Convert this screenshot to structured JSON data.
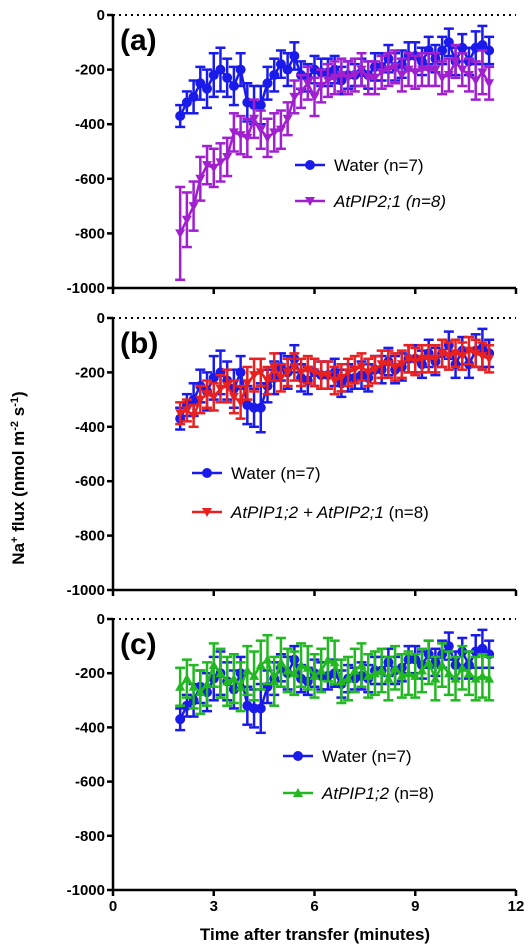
{
  "chart_data": {
    "type": "scatter",
    "xlabel": "Time after transfer (minutes)",
    "ylabel": {
      "base": "Na",
      "sup1": "+",
      "mid": " flux (nmol m",
      "sup2": "-2",
      "mid2": " s",
      "sup3": "-1",
      "end": ")"
    },
    "xlim": [
      0,
      12
    ],
    "xticks": [
      "0",
      "3",
      "6",
      "9",
      "12"
    ],
    "ylim": [
      -1000,
      0
    ],
    "yticks": [
      "0",
      "-200",
      "-400",
      "-600",
      "-800",
      "-1000"
    ],
    "panels": [
      {
        "label": "(a)",
        "legend": [
          {
            "text": "Water (n=7)",
            "italic": "",
            "suffix": "",
            "color": "#1a1aeb",
            "marker": "circle"
          },
          {
            "text": "",
            "italic": "AtPIP2;1 (n=8)",
            "suffix": "",
            "color": "#a020d0",
            "marker": "triangle-down"
          }
        ],
        "series": [
          {
            "color": "#1a1aeb",
            "marker": "circle",
            "x": [
              2.0,
              2.2,
              2.4,
              2.6,
              2.8,
              3.0,
              3.2,
              3.4,
              3.6,
              3.8,
              4.0,
              4.2,
              4.4,
              4.6,
              4.8,
              5.0,
              5.2,
              5.4,
              5.6,
              5.8,
              6.0,
              6.2,
              6.4,
              6.6,
              6.8,
              7.0,
              7.2,
              7.4,
              7.6,
              7.8,
              8.0,
              8.2,
              8.4,
              8.6,
              8.8,
              9.0,
              9.2,
              9.4,
              9.6,
              9.8,
              10.0,
              10.2,
              10.4,
              10.6,
              10.8,
              11.0,
              11.2
            ],
            "y": [
              -370,
              -320,
              -300,
              -250,
              -270,
              -220,
              -200,
              -230,
              -260,
              -200,
              -320,
              -330,
              -330,
              -250,
              -220,
              -180,
              -200,
              -150,
              -220,
              -230,
              -200,
              -210,
              -210,
              -200,
              -240,
              -220,
              -220,
              -210,
              -220,
              -190,
              -190,
              -160,
              -190,
              -180,
              -150,
              -150,
              -170,
              -130,
              -160,
              -130,
              -100,
              -170,
              -120,
              -170,
              -120,
              -110,
              -130
            ],
            "err": [
              40,
              40,
              60,
              60,
              70,
              80,
              80,
              70,
              70,
              60,
              70,
              70,
              70,
              60,
              60,
              50,
              60,
              50,
              50,
              50,
              50,
              50,
              50,
              50,
              50,
              50,
              40,
              50,
              50,
              50,
              50,
              50,
              50,
              50,
              50,
              50,
              50,
              50,
              50,
              50,
              50,
              50,
              50,
              50,
              60,
              70,
              50
            ]
          },
          {
            "color": "#a020d0",
            "marker": "triangle-down",
            "x": [
              2.0,
              2.2,
              2.4,
              2.6,
              2.8,
              3.0,
              3.2,
              3.4,
              3.6,
              3.8,
              4.0,
              4.2,
              4.4,
              4.6,
              4.8,
              5.0,
              5.2,
              5.4,
              5.6,
              5.8,
              6.0,
              6.2,
              6.4,
              6.6,
              6.8,
              7.0,
              7.2,
              7.4,
              7.6,
              7.8,
              8.0,
              8.2,
              8.4,
              8.6,
              8.8,
              9.0,
              9.2,
              9.4,
              9.6,
              9.8,
              10.0,
              10.2,
              10.4,
              10.6,
              10.8,
              11.0,
              11.2
            ],
            "y": [
              -800,
              -750,
              -700,
              -600,
              -550,
              -560,
              -540,
              -520,
              -430,
              -440,
              -450,
              -380,
              -420,
              -450,
              -430,
              -420,
              -380,
              -300,
              -280,
              -250,
              -300,
              -260,
              -240,
              -230,
              -220,
              -230,
              -220,
              -200,
              -230,
              -230,
              -210,
              -200,
              -190,
              -220,
              -200,
              -210,
              -200,
              -200,
              -200,
              -230,
              -220,
              -170,
              -200,
              -220,
              -240,
              -210,
              -250
            ],
            "err": [
              170,
              100,
              90,
              80,
              70,
              70,
              70,
              70,
              70,
              70,
              70,
              70,
              70,
              70,
              70,
              70,
              60,
              60,
              60,
              60,
              70,
              60,
              60,
              60,
              60,
              60,
              60,
              60,
              60,
              60,
              60,
              60,
              60,
              60,
              60,
              60,
              60,
              60,
              60,
              60,
              60,
              60,
              60,
              60,
              70,
              80,
              60
            ]
          }
        ]
      },
      {
        "label": "(b)",
        "legend": [
          {
            "text": "Water (n=7)",
            "italic": "",
            "suffix": "",
            "color": "#1a1aeb",
            "marker": "circle"
          },
          {
            "text": "",
            "italic": "AtPIP1;2 + AtPIP2;1",
            "suffix": " (n=8)",
            "color": "#e82020",
            "marker": "triangle-down"
          }
        ],
        "series": [
          {
            "color": "#1a1aeb",
            "marker": "circle",
            "x": [
              2.0,
              2.2,
              2.4,
              2.6,
              2.8,
              3.0,
              3.2,
              3.4,
              3.6,
              3.8,
              4.0,
              4.2,
              4.4,
              4.6,
              4.8,
              5.0,
              5.2,
              5.4,
              5.6,
              5.8,
              6.0,
              6.2,
              6.4,
              6.6,
              6.8,
              7.0,
              7.2,
              7.4,
              7.6,
              7.8,
              8.0,
              8.2,
              8.4,
              8.6,
              8.8,
              9.0,
              9.2,
              9.4,
              9.6,
              9.8,
              10.0,
              10.2,
              10.4,
              10.6,
              10.8,
              11.0,
              11.2
            ],
            "y": [
              -370,
              -320,
              -300,
              -250,
              -270,
              -220,
              -200,
              -230,
              -260,
              -200,
              -320,
              -330,
              -330,
              -250,
              -220,
              -180,
              -200,
              -150,
              -220,
              -230,
              -200,
              -210,
              -210,
              -200,
              -240,
              -220,
              -220,
              -210,
              -220,
              -190,
              -190,
              -160,
              -190,
              -180,
              -150,
              -150,
              -170,
              -130,
              -160,
              -130,
              -100,
              -170,
              -120,
              -170,
              -120,
              -110,
              -130
            ],
            "err": [
              40,
              40,
              60,
              60,
              70,
              80,
              80,
              70,
              70,
              60,
              70,
              70,
              90,
              60,
              60,
              50,
              60,
              50,
              50,
              50,
              50,
              50,
              50,
              50,
              50,
              50,
              40,
              50,
              50,
              50,
              50,
              50,
              50,
              50,
              50,
              50,
              50,
              50,
              50,
              50,
              50,
              50,
              50,
              50,
              60,
              70,
              50
            ]
          },
          {
            "color": "#e82020",
            "marker": "triangle-down",
            "x": [
              2.0,
              2.2,
              2.4,
              2.6,
              2.8,
              3.0,
              3.2,
              3.4,
              3.6,
              3.8,
              4.0,
              4.2,
              4.4,
              4.6,
              4.8,
              5.0,
              5.2,
              5.4,
              5.6,
              5.8,
              6.0,
              6.2,
              6.4,
              6.6,
              6.8,
              7.0,
              7.2,
              7.4,
              7.6,
              7.8,
              8.0,
              8.2,
              8.4,
              8.6,
              8.8,
              9.0,
              9.2,
              9.4,
              9.6,
              9.8,
              10.0,
              10.2,
              10.4,
              10.6,
              10.8,
              11.0,
              11.2
            ],
            "y": [
              -350,
              -340,
              -360,
              -300,
              -280,
              -290,
              -260,
              -250,
              -290,
              -310,
              -240,
              -210,
              -200,
              -230,
              -180,
              -220,
              -200,
              -180,
              -200,
              -190,
              -200,
              -210,
              -210,
              -230,
              -220,
              -200,
              -190,
              -180,
              -200,
              -190,
              -170,
              -170,
              -180,
              -170,
              -150,
              -160,
              -150,
              -150,
              -150,
              -130,
              -140,
              -130,
              -140,
              -120,
              -130,
              -140,
              -150
            ],
            "err": [
              40,
              40,
              40,
              50,
              50,
              50,
              50,
              60,
              60,
              60,
              60,
              60,
              50,
              50,
              50,
              50,
              50,
              50,
              50,
              50,
              50,
              50,
              50,
              50,
              50,
              50,
              50,
              50,
              50,
              50,
              50,
              50,
              50,
              50,
              50,
              50,
              50,
              50,
              50,
              50,
              50,
              50,
              50,
              50,
              50,
              50,
              50
            ]
          }
        ]
      },
      {
        "label": "(c)",
        "legend": [
          {
            "text": "Water (n=7)",
            "italic": "",
            "suffix": "",
            "color": "#1a1aeb",
            "marker": "circle"
          },
          {
            "text": "",
            "italic": "AtPIP1;2",
            "suffix": " (n=8)",
            "color": "#22b822",
            "marker": "triangle-up"
          }
        ],
        "series": [
          {
            "color": "#1a1aeb",
            "marker": "circle",
            "x": [
              2.0,
              2.2,
              2.4,
              2.6,
              2.8,
              3.0,
              3.2,
              3.4,
              3.6,
              3.8,
              4.0,
              4.2,
              4.4,
              4.6,
              4.8,
              5.0,
              5.2,
              5.4,
              5.6,
              5.8,
              6.0,
              6.2,
              6.4,
              6.6,
              6.8,
              7.0,
              7.2,
              7.4,
              7.6,
              7.8,
              8.0,
              8.2,
              8.4,
              8.6,
              8.8,
              9.0,
              9.2,
              9.4,
              9.6,
              9.8,
              10.0,
              10.2,
              10.4,
              10.6,
              10.8,
              11.0,
              11.2
            ],
            "y": [
              -370,
              -320,
              -300,
              -250,
              -270,
              -220,
              -200,
              -230,
              -260,
              -200,
              -320,
              -330,
              -330,
              -250,
              -220,
              -180,
              -200,
              -150,
              -220,
              -230,
              -200,
              -210,
              -210,
              -200,
              -240,
              -220,
              -220,
              -210,
              -220,
              -190,
              -190,
              -160,
              -190,
              -180,
              -150,
              -150,
              -170,
              -130,
              -160,
              -130,
              -100,
              -170,
              -120,
              -170,
              -120,
              -110,
              -130
            ],
            "err": [
              40,
              40,
              60,
              60,
              70,
              80,
              80,
              70,
              70,
              60,
              70,
              70,
              90,
              60,
              60,
              50,
              60,
              50,
              50,
              50,
              50,
              50,
              50,
              50,
              50,
              50,
              40,
              50,
              50,
              50,
              50,
              50,
              50,
              50,
              50,
              50,
              50,
              50,
              50,
              50,
              50,
              50,
              50,
              50,
              60,
              70,
              50
            ]
          },
          {
            "color": "#22b822",
            "marker": "triangle-up",
            "x": [
              2.0,
              2.2,
              2.4,
              2.6,
              2.8,
              3.0,
              3.2,
              3.4,
              3.6,
              3.8,
              4.0,
              4.2,
              4.4,
              4.6,
              4.8,
              5.0,
              5.2,
              5.4,
              5.6,
              5.8,
              6.0,
              6.2,
              6.4,
              6.6,
              6.8,
              7.0,
              7.2,
              7.4,
              7.6,
              7.8,
              8.0,
              8.2,
              8.4,
              8.6,
              8.8,
              9.0,
              9.2,
              9.4,
              9.6,
              9.8,
              10.0,
              10.2,
              10.4,
              10.6,
              10.8,
              11.0,
              11.2
            ],
            "y": [
              -250,
              -220,
              -250,
              -270,
              -240,
              -170,
              -200,
              -230,
              -220,
              -250,
              -190,
              -210,
              -170,
              -150,
              -230,
              -160,
              -190,
              -200,
              -170,
              -180,
              -210,
              -190,
              -150,
              -160,
              -230,
              -220,
              -190,
              -170,
              -210,
              -200,
              -190,
              -220,
              -180,
              -210,
              -200,
              -210,
              -190,
              -160,
              -220,
              -170,
              -200,
              -220,
              -180,
              -200,
              -220,
              -210,
              -220
            ],
            "err": [
              70,
              70,
              80,
              80,
              80,
              80,
              90,
              90,
              90,
              90,
              90,
              90,
              90,
              90,
              90,
              90,
              80,
              80,
              80,
              80,
              80,
              80,
              80,
              80,
              80,
              80,
              80,
              80,
              80,
              80,
              80,
              80,
              80,
              80,
              80,
              80,
              80,
              80,
              80,
              80,
              80,
              80,
              80,
              80,
              80,
              80,
              80
            ]
          }
        ]
      }
    ]
  }
}
